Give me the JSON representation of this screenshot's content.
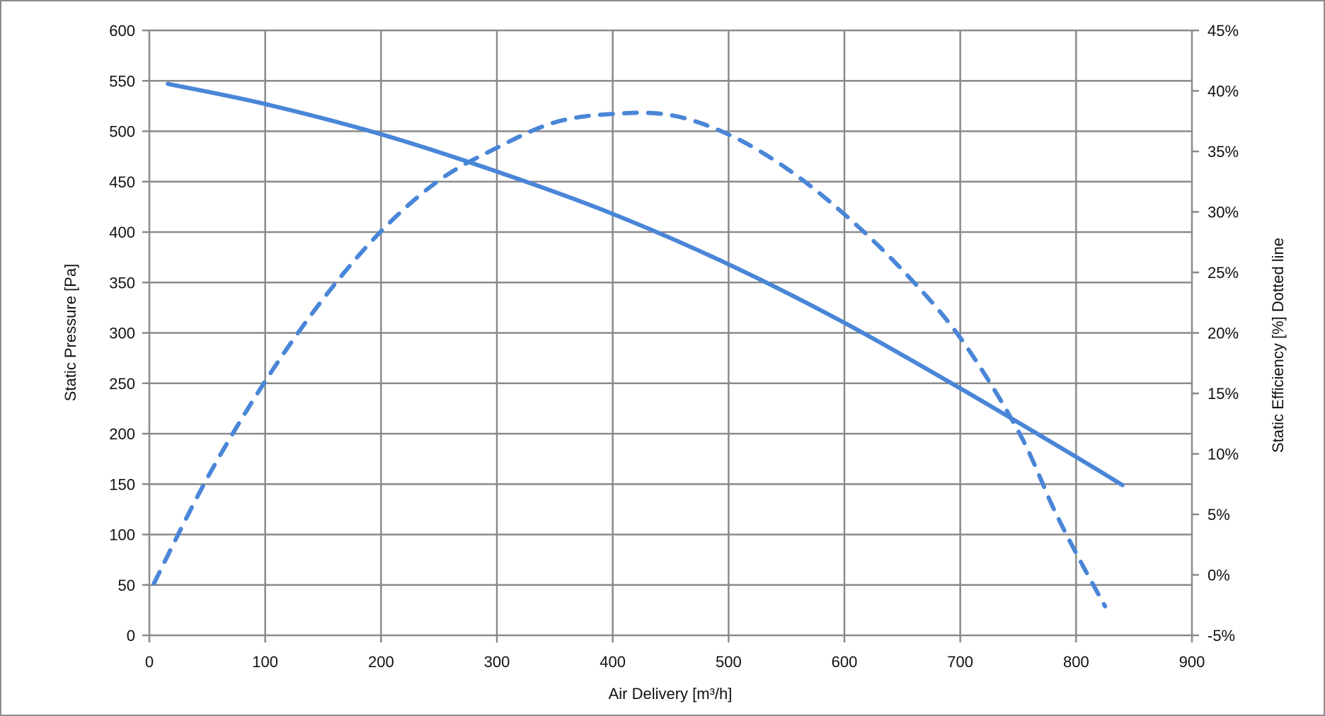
{
  "chart_data": {
    "type": "line",
    "title": "",
    "xlabel": "Air Delivery [m³/h]",
    "ylabel": "Static Pressure [Pa]",
    "y2label": "Static Efficiency [%] Dotted line",
    "xlim": [
      0,
      900
    ],
    "ylim": [
      0,
      600
    ],
    "y2lim": [
      -5,
      45
    ],
    "grid": true,
    "x_ticks": [
      "0",
      "100",
      "200",
      "300",
      "400",
      "500",
      "600",
      "700",
      "800",
      "900"
    ],
    "y_ticks": [
      "0",
      "50",
      "100",
      "150",
      "200",
      "250",
      "300",
      "350",
      "400",
      "450",
      "500",
      "550",
      "600"
    ],
    "y2_ticks": [
      "-5%",
      "0%",
      "5%",
      "10%",
      "15%",
      "20%",
      "25%",
      "30%",
      "35%",
      "40%",
      "45%"
    ],
    "color": "#4a86d8",
    "series": [
      {
        "name": "Static Pressure",
        "axis": "left",
        "style": "solid",
        "x": [
          16,
          100,
          200,
          300,
          400,
          500,
          600,
          700,
          800,
          840
        ],
        "y": [
          547,
          527,
          497,
          460,
          418,
          368,
          310,
          245,
          177,
          149
        ]
      },
      {
        "name": "Static Efficiency",
        "axis": "right",
        "style": "dashed",
        "x": [
          4,
          50,
          100,
          150,
          200,
          250,
          300,
          350,
          400,
          450,
          500,
          550,
          600,
          650,
          700,
          750,
          780,
          800,
          825
        ],
        "y": [
          -0.7,
          8.0,
          16.0,
          22.8,
          28.4,
          32.6,
          35.3,
          37.4,
          38.1,
          38.0,
          36.4,
          33.6,
          29.8,
          25.2,
          19.6,
          11.9,
          5.6,
          1.8,
          -2.6
        ]
      }
    ]
  }
}
